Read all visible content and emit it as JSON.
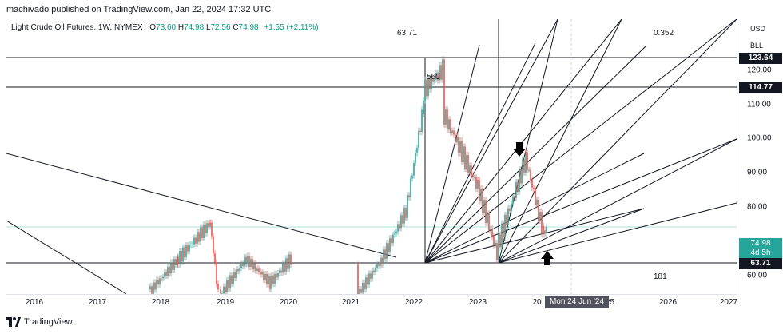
{
  "header": {
    "published": "machivado published on TradingView.com, Jan 22, 2024 17:32 UTC"
  },
  "legend": {
    "symbol": "Light Crude Oil Futures, 1W, NYMEX",
    "open_label": "O",
    "open": "73.60",
    "high_label": "H",
    "high": "74.98",
    "low_label": "L",
    "low": "72.56",
    "close_label": "C",
    "close": "74.98",
    "change": "+1.55 (+2.11%)"
  },
  "annotations": {
    "top": "63.71",
    "peak": "560",
    "right_top": "0.352",
    "bottom": "181"
  },
  "price_scale": {
    "currency": "USD",
    "unit": "BLL",
    "ticks": [
      "120.00",
      "110.00",
      "100.00",
      "90.00",
      "80.00",
      "60.00"
    ],
    "level_tags": [
      "123.64",
      "114.77",
      "63.71"
    ],
    "last_price": "74.98",
    "countdown": "4d 5h"
  },
  "time_axis": {
    "years": [
      "2016",
      "2017",
      "2018",
      "2019",
      "2020",
      "2021",
      "2022",
      "2023",
      "20",
      "2025",
      "2026",
      "2027"
    ],
    "crosshair_date": "Mon 24 Jun '24"
  },
  "footer": {
    "brand": "TradingView"
  },
  "colors": {
    "up": "#26a69a",
    "down": "#ef5350",
    "line": "#131722",
    "last_price": "#26a69a"
  }
}
